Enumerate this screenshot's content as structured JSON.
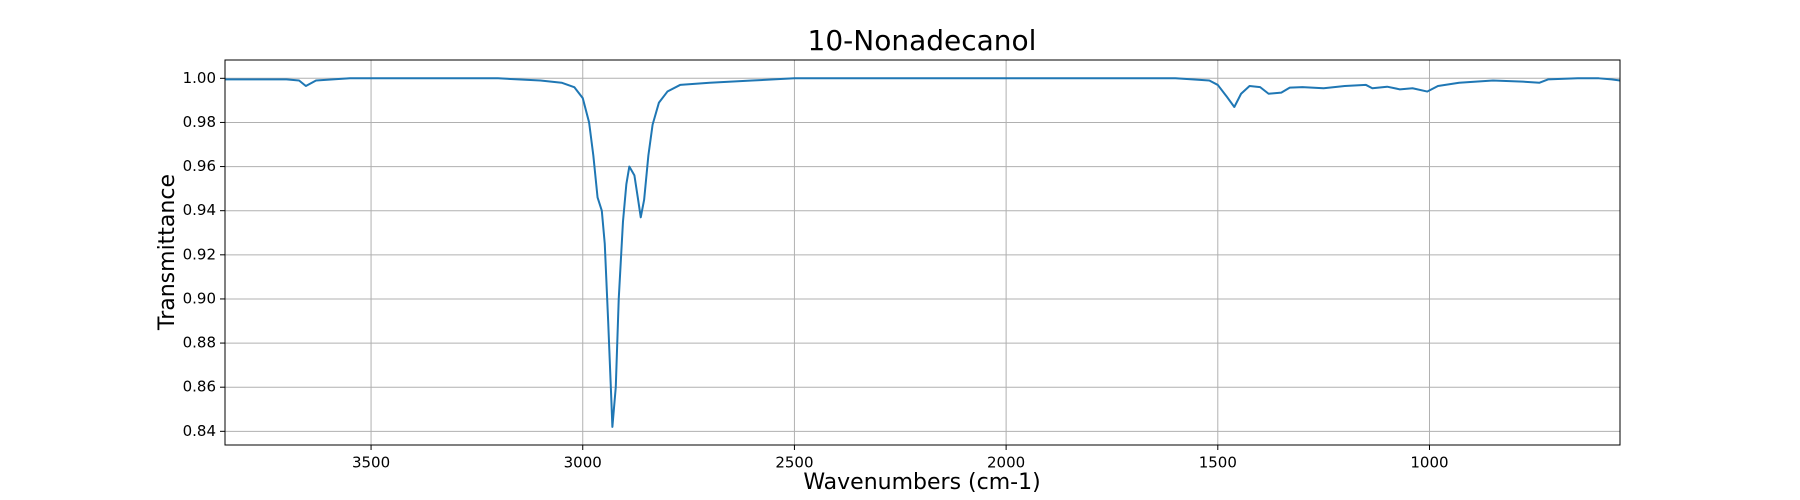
{
  "chart_data": {
    "type": "line",
    "title": "10-Nonadecanol",
    "x_label": "Wavenumbers (cm-1)",
    "y_label": "Transmittance",
    "x": [
      3845,
      3700,
      3670,
      3654,
      3630,
      3550,
      3200,
      3100,
      3050,
      3020,
      3000,
      2985,
      2975,
      2965,
      2955,
      2948,
      2940,
      2932,
      2930,
      2922,
      2915,
      2905,
      2897,
      2890,
      2878,
      2870,
      2863,
      2855,
      2845,
      2835,
      2820,
      2800,
      2770,
      2700,
      2600,
      2500,
      1600,
      1520,
      1500,
      1480,
      1461,
      1445,
      1425,
      1400,
      1380,
      1350,
      1330,
      1300,
      1250,
      1200,
      1150,
      1135,
      1100,
      1070,
      1040,
      1005,
      980,
      930,
      850,
      780,
      740,
      720,
      650,
      600,
      570,
      550
    ],
    "values": [
      0.9995,
      0.9995,
      0.999,
      0.9965,
      0.999,
      1.0,
      1.0,
      0.999,
      0.998,
      0.996,
      0.991,
      0.98,
      0.965,
      0.946,
      0.94,
      0.925,
      0.89,
      0.852,
      0.842,
      0.86,
      0.9,
      0.935,
      0.952,
      0.96,
      0.956,
      0.946,
      0.937,
      0.945,
      0.965,
      0.979,
      0.989,
      0.994,
      0.997,
      0.998,
      0.999,
      1.0,
      1.0,
      0.999,
      0.997,
      0.992,
      0.987,
      0.993,
      0.9965,
      0.996,
      0.993,
      0.9935,
      0.9958,
      0.996,
      0.9955,
      0.9965,
      0.997,
      0.9955,
      0.9962,
      0.995,
      0.9955,
      0.994,
      0.9965,
      0.998,
      0.999,
      0.9985,
      0.998,
      0.9995,
      1.0,
      1.0,
      0.9995,
      0.999
    ],
    "color": "#1f77b4",
    "xlim": [
      3845,
      550
    ],
    "xticks": [
      3500,
      3000,
      2500,
      2000,
      1500,
      1000
    ],
    "ylim": [
      0.8338,
      1.0083
    ],
    "yticks": [
      {
        "value": 0.84,
        "label": "0.84"
      },
      {
        "value": 0.86,
        "label": "0.86"
      },
      {
        "value": 0.88,
        "label": "0.88"
      },
      {
        "value": 0.9,
        "label": "0.90"
      },
      {
        "value": 0.92,
        "label": "0.92"
      },
      {
        "value": 0.94,
        "label": "0.94"
      },
      {
        "value": 0.96,
        "label": "0.96"
      },
      {
        "value": 0.98,
        "label": "0.98"
      },
      {
        "value": 1.0,
        "label": "1.00"
      }
    ],
    "grid": true
  }
}
